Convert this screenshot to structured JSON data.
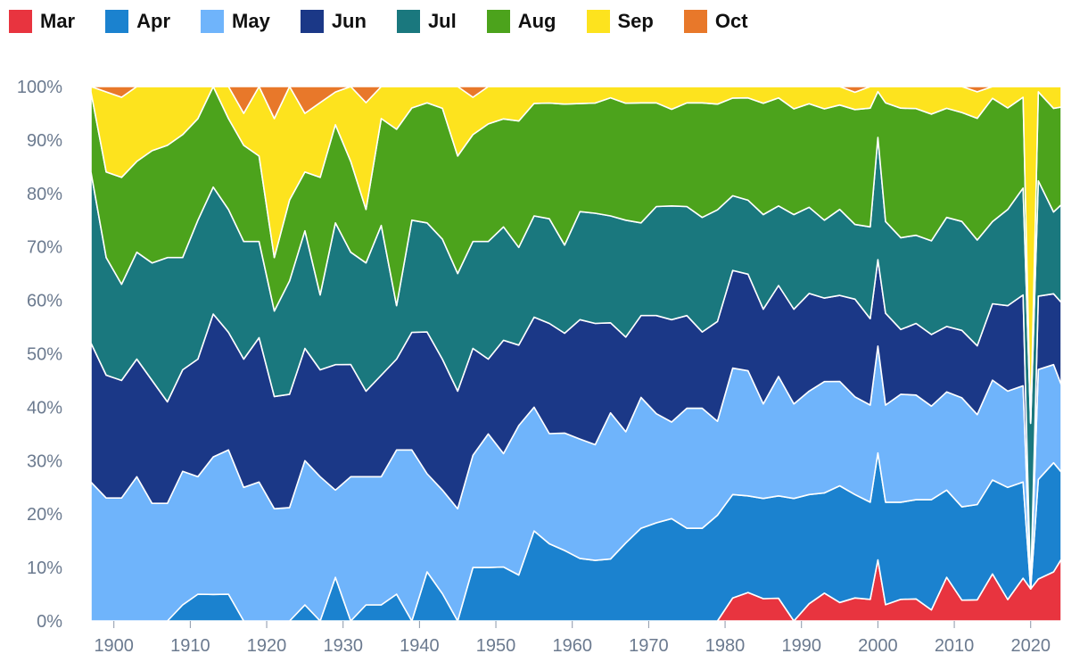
{
  "legend": {
    "mar": "Mar",
    "apr": "Apr",
    "may": "May",
    "jun": "Jun",
    "jul": "Jul",
    "aug": "Aug",
    "sep": "Sep",
    "oct": "Oct"
  },
  "colors": {
    "Mar": "#e8343f",
    "Apr": "#1b82cf",
    "May": "#6fb4fb",
    "Jun": "#1b3887",
    "Jul": "#1a787e",
    "Aug": "#4ca31c",
    "Sep": "#fde31e",
    "Oct": "#e8782a"
  },
  "chart_data": {
    "type": "area",
    "stacked": true,
    "normalized": true,
    "title": "",
    "xlabel": "",
    "ylabel": "",
    "x": [
      1897,
      1899,
      1901,
      1903,
      1905,
      1907,
      1909,
      1911,
      1913,
      1915,
      1917,
      1919,
      1921,
      1923,
      1925,
      1927,
      1929,
      1931,
      1933,
      1935,
      1937,
      1939,
      1941,
      1943,
      1945,
      1947,
      1949,
      1951,
      1953,
      1955,
      1957,
      1959,
      1961,
      1963,
      1965,
      1967,
      1969,
      1971,
      1973,
      1975,
      1977,
      1979,
      1981,
      1983,
      1985,
      1987,
      1989,
      1991,
      1993,
      1995,
      1997,
      1999,
      2000,
      2001,
      2003,
      2005,
      2007,
      2009,
      2011,
      2013,
      2015,
      2017,
      2019,
      2020,
      2021,
      2023,
      2024
    ],
    "xlim": [
      1897,
      2024
    ],
    "ylim": [
      0,
      100
    ],
    "x_ticks": [
      "1900",
      "1910",
      "1920",
      "1930",
      "1940",
      "1950",
      "1960",
      "1970",
      "1980",
      "1990",
      "2000",
      "2010",
      "2020"
    ],
    "x_tick_values": [
      1900,
      1910,
      1920,
      1930,
      1940,
      1950,
      1960,
      1970,
      1980,
      1990,
      2000,
      2010,
      2020
    ],
    "y_ticks": [
      "0%",
      "10%",
      "20%",
      "30%",
      "40%",
      "50%",
      "60%",
      "70%",
      "80%",
      "90%",
      "100%"
    ],
    "y_tick_values": [
      0,
      10,
      20,
      30,
      40,
      50,
      60,
      70,
      80,
      90,
      100
    ],
    "legend_position": "top-left",
    "grid": false,
    "series": [
      {
        "name": "Mar",
        "values": [
          0,
          0,
          0,
          0,
          0,
          0,
          0,
          0,
          0,
          0,
          0,
          0,
          0,
          0,
          0,
          0,
          0,
          0,
          0,
          0,
          0,
          0,
          0,
          0,
          0,
          0,
          0,
          0,
          0,
          0,
          0,
          0,
          0,
          0,
          0,
          0,
          0,
          0,
          0,
          0,
          0,
          0,
          4,
          5,
          4,
          4,
          0,
          3,
          5,
          3,
          4,
          4,
          12,
          3,
          4,
          4,
          2,
          8,
          4,
          4,
          8,
          4,
          8,
          6,
          8,
          9,
          12
        ]
      },
      {
        "name": "Apr",
        "values": [
          0,
          0,
          0,
          0,
          0,
          0,
          3,
          5,
          5,
          5,
          0,
          0,
          0,
          0,
          3,
          0,
          8,
          0,
          3,
          3,
          5,
          0,
          9,
          5,
          0,
          10,
          10,
          10,
          8,
          16,
          14,
          12,
          11,
          11,
          11,
          14,
          17,
          18,
          18,
          17,
          17,
          18,
          18,
          17,
          18,
          18,
          22,
          19,
          18,
          19,
          18,
          18,
          21,
          19,
          18,
          18,
          20,
          16,
          18,
          18,
          16,
          21,
          18,
          0,
          19,
          20,
          17
        ]
      },
      {
        "name": "May",
        "values": [
          26,
          23,
          23,
          27,
          22,
          22,
          25,
          22,
          26,
          27,
          25,
          26,
          21,
          21,
          27,
          27,
          16,
          27,
          24,
          24,
          27,
          32,
          18,
          19,
          21,
          21,
          25,
          21,
          26,
          22,
          20,
          20,
          21,
          21,
          26,
          20,
          24,
          20,
          17,
          22,
          22,
          16,
          22,
          22,
          17,
          21,
          17,
          18,
          20,
          17,
          17,
          18,
          21,
          18,
          20,
          19,
          17,
          18,
          21,
          17,
          17,
          18,
          18,
          0,
          21,
          18,
          17
        ]
      },
      {
        "name": "Jun",
        "values": [
          26,
          23,
          22,
          22,
          23,
          19,
          19,
          22,
          27,
          22,
          24,
          27,
          21,
          21,
          21,
          20,
          23,
          21,
          16,
          19,
          17,
          22,
          26,
          24,
          22,
          20,
          14,
          21,
          14,
          16,
          20,
          17,
          21,
          22,
          16,
          17,
          15,
          18,
          18,
          17,
          14,
          17,
          17,
          17,
          17,
          16,
          17,
          17,
          15,
          14,
          17,
          16,
          17,
          17,
          12,
          13,
          13,
          12,
          13,
          13,
          13,
          16,
          17,
          0,
          14,
          13,
          16
        ]
      },
      {
        "name": "Jul",
        "values": [
          32,
          22,
          18,
          20,
          22,
          27,
          21,
          26,
          24,
          23,
          22,
          18,
          16,
          21,
          22,
          14,
          26,
          21,
          24,
          28,
          10,
          21,
          20,
          22,
          22,
          20,
          22,
          21,
          17,
          18,
          19,
          15,
          19,
          20,
          19,
          21,
          17,
          20,
          20,
          20,
          21,
          19,
          13,
          13,
          17,
          14,
          17,
          15,
          14,
          14,
          13,
          17,
          24,
          17,
          17,
          16,
          17,
          20,
          21,
          20,
          14,
          18,
          20,
          31,
          22,
          15,
          19
        ]
      },
      {
        "name": "Aug",
        "values": [
          15,
          16,
          20,
          17,
          21,
          21,
          23,
          19,
          19,
          17,
          18,
          16,
          10,
          15,
          11,
          22,
          18,
          17,
          10,
          20,
          33,
          21,
          22,
          24,
          22,
          20,
          22,
          20,
          22,
          20,
          21,
          24,
          19,
          20,
          21,
          21,
          22,
          19,
          17,
          19,
          21,
          18,
          17,
          18,
          20,
          19,
          19,
          18,
          20,
          17,
          20,
          22,
          9,
          22,
          24,
          23,
          23,
          20,
          21,
          23,
          21,
          19,
          17,
          0,
          17,
          19,
          19
        ]
      },
      {
        "name": "Sep",
        "values": [
          1,
          15,
          15,
          14,
          12,
          11,
          9,
          6,
          0,
          6,
          6,
          13,
          26,
          21,
          11,
          14,
          6,
          14,
          20,
          6,
          8,
          4,
          3,
          4,
          13,
          7,
          7,
          6,
          6,
          3,
          3,
          3,
          3,
          3,
          2,
          3,
          3,
          3,
          4,
          3,
          3,
          3,
          2,
          2,
          3,
          2,
          4,
          3,
          4,
          3,
          3,
          4,
          1,
          3,
          4,
          4,
          5,
          4,
          5,
          5,
          2,
          4,
          2,
          63,
          1,
          4,
          4
        ]
      },
      {
        "name": "Oct",
        "values": [
          0,
          1,
          2,
          0,
          0,
          0,
          0,
          0,
          0,
          0,
          5,
          0,
          6,
          0,
          5,
          3,
          1,
          0,
          3,
          0,
          0,
          0,
          0,
          0,
          0,
          2,
          0,
          0,
          0,
          0,
          0,
          0,
          0,
          0,
          0,
          0,
          0,
          0,
          0,
          0,
          0,
          0,
          0,
          0,
          0,
          0,
          0,
          0,
          0,
          0,
          1,
          0,
          0,
          0,
          0,
          0,
          0,
          0,
          0,
          1,
          0,
          0,
          0,
          0,
          0,
          0,
          0
        ]
      }
    ]
  }
}
